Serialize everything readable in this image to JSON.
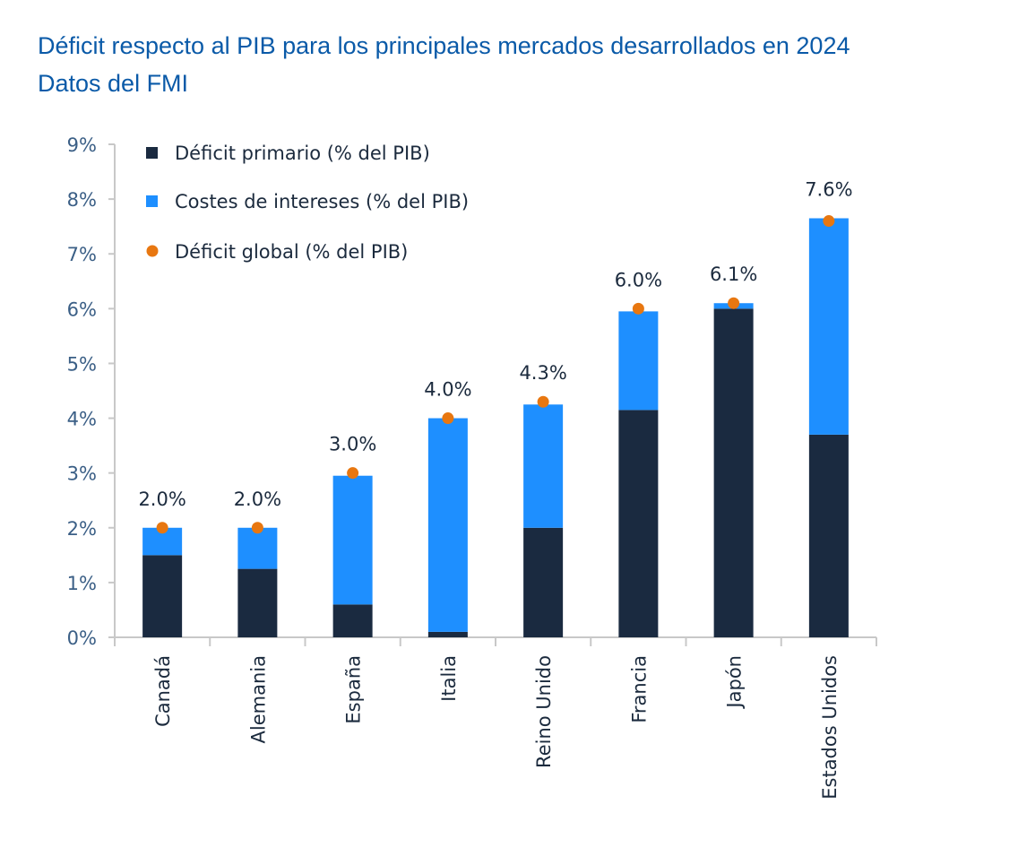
{
  "title_line1": "Déficit respecto al PIB para los principales mercados desarrollados en 2024",
  "title_line2": "Datos del FMI",
  "colors": {
    "primary": "#1a2a40",
    "interest": "#1e8fff",
    "global": "#e87710",
    "title": "#0a5aa8",
    "axis": "#c8c8c8"
  },
  "chart_data": {
    "type": "bar",
    "stacked": true,
    "title": "Déficit respecto al PIB para los principales mercados desarrollados en 2024",
    "subtitle": "Datos del FMI",
    "xlabel": "",
    "ylabel": "",
    "ylim": [
      0,
      9
    ],
    "yticks": [
      "0%",
      "1%",
      "2%",
      "3%",
      "4%",
      "5%",
      "6%",
      "7%",
      "8%",
      "9%"
    ],
    "grid": false,
    "legend_position": "top-left",
    "categories": [
      "Canadá",
      "Alemania",
      "España",
      "Italia",
      "Reino Unido",
      "Francia",
      "Japón",
      "Estados Unidos"
    ],
    "series": [
      {
        "name": "Déficit primario (% del PIB)",
        "type": "bar",
        "values": [
          1.5,
          1.25,
          0.6,
          0.1,
          2.0,
          4.15,
          6.0,
          3.7
        ]
      },
      {
        "name": "Costes de intereses (% del PIB)",
        "type": "bar",
        "values": [
          0.5,
          0.75,
          2.35,
          3.9,
          2.25,
          1.8,
          0.1,
          3.95
        ]
      },
      {
        "name": "Déficit global (% del PIB)",
        "type": "scatter",
        "values": [
          2.0,
          2.0,
          3.0,
          4.0,
          4.3,
          6.0,
          6.1,
          7.6
        ]
      }
    ],
    "data_labels": [
      "2.0%",
      "2.0%",
      "3.0%",
      "4.0%",
      "4.3%",
      "6.0%",
      "6.1%",
      "7.6%"
    ]
  }
}
